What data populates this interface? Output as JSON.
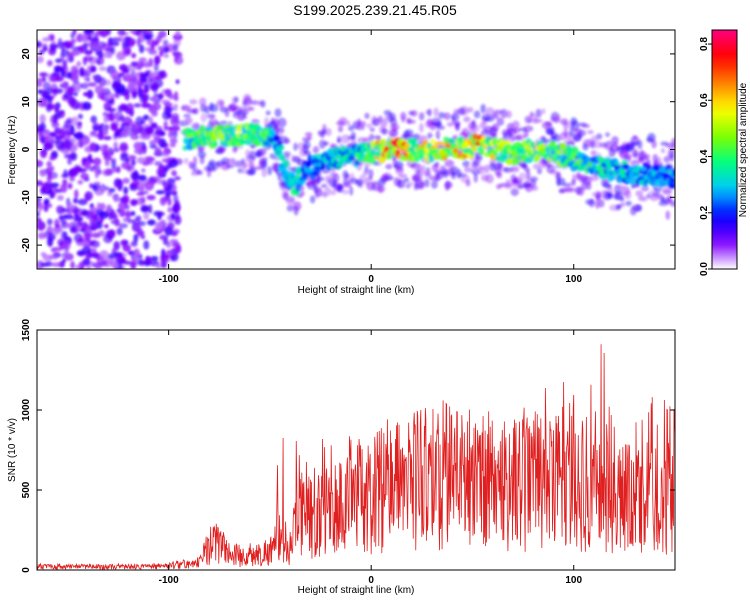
{
  "title": "S199.2025.239.21.45.R05",
  "colors": {
    "snr_line": "#e02020",
    "axis": "#000000"
  },
  "chart_data": [
    {
      "type": "heatmap",
      "title": "",
      "xlabel": "Height of straight line (km)",
      "ylabel": "Frequency (Hz)",
      "xlim": [
        -165,
        150
      ],
      "ylim": [
        -25,
        25
      ],
      "xticks": [
        -100,
        0,
        100
      ],
      "xtick_labels": [
        "-100",
        "0",
        "100"
      ],
      "yticks": [
        -20,
        -10,
        0,
        10,
        20
      ],
      "ytick_labels": [
        "-20",
        "-10",
        "0",
        "10",
        "20"
      ],
      "grid": false,
      "colorbar": {
        "label": "Normalized spectral amplitude",
        "range": [
          0,
          0.85
        ],
        "ticks": [
          0,
          0.2,
          0.4,
          0.6,
          0.8
        ],
        "tick_labels": [
          "0.0",
          "0.2",
          "0.4",
          "0.6",
          "0.8"
        ],
        "colormap": [
          "#ffffff",
          "#8000ff",
          "#0000ff",
          "#00c8ff",
          "#00ff80",
          "#80ff00",
          "#ffff00",
          "#ff8000",
          "#ff0000",
          "#ff0080"
        ]
      },
      "ridge": {
        "name": "",
        "x": [
          -92,
          -80,
          -65,
          -52,
          -47,
          -42,
          -38,
          -32,
          -20,
          -5,
          10,
          25,
          40,
          55,
          70,
          85,
          100,
          115,
          130,
          148
        ],
        "y": [
          2,
          2.5,
          3,
          3,
          2,
          -5,
          -8,
          -4,
          -2,
          -1,
          0,
          0,
          0,
          1,
          -1,
          0,
          -2,
          -4,
          -5,
          -6
        ],
        "peak_amplitude": [
          0.45,
          0.5,
          0.55,
          0.5,
          0.3,
          0.35,
          0.4,
          0.3,
          0.35,
          0.4,
          0.8,
          0.6,
          0.65,
          0.7,
          0.5,
          0.55,
          0.45,
          0.4,
          0.35,
          0.3
        ]
      },
      "noise_region": {
        "x": [
          -165,
          -95
        ],
        "y": [
          -25,
          25
        ],
        "amplitude": [
          0.05,
          0.15
        ]
      }
    },
    {
      "type": "line",
      "title": "",
      "xlabel": "Height of straight line (km)",
      "ylabel": "SNR (10 * v/v)",
      "xlim": [
        -165,
        150
      ],
      "ylim": [
        0,
        1500
      ],
      "xticks": [
        -100,
        0,
        100
      ],
      "xtick_labels": [
        "-100",
        "0",
        "100"
      ],
      "yticks": [
        0,
        500,
        1000,
        1500
      ],
      "ytick_labels": [
        "0",
        "500",
        "1000",
        "1500"
      ],
      "grid": false,
      "series": [
        {
          "name": "",
          "x": [
            -165,
            -150,
            -130,
            -110,
            -95,
            -85,
            -80,
            -75,
            -70,
            -60,
            -50,
            -45,
            -40,
            -35,
            -30,
            -20,
            -10,
            0,
            10,
            20,
            30,
            40,
            50,
            60,
            70,
            80,
            90,
            100,
            110,
            120,
            130,
            140,
            150
          ],
          "y": [
            20,
            20,
            20,
            20,
            25,
            40,
            150,
            180,
            90,
            80,
            120,
            200,
            150,
            350,
            320,
            380,
            420,
            480,
            520,
            560,
            580,
            600,
            590,
            560,
            540,
            580,
            520,
            480,
            500,
            460,
            440,
            450,
            470
          ],
          "spike_max": [
            40,
            40,
            40,
            40,
            60,
            80,
            280,
            310,
            200,
            180,
            260,
            800,
            900,
            800,
            700,
            900,
            850,
            950,
            950,
            1000,
            1050,
            1090,
            1000,
            1000,
            1050,
            1120,
            1150,
            1200,
            1500,
            1400,
            1200,
            1100,
            1050
          ]
        }
      ]
    }
  ]
}
